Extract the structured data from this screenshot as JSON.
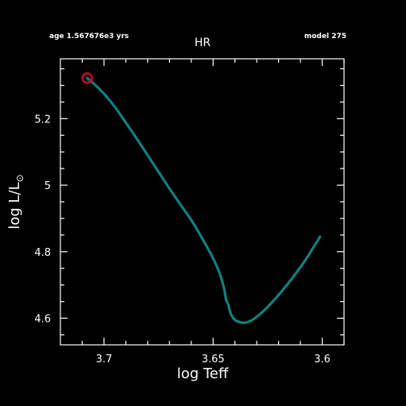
{
  "header": {
    "age_text": "age 1.567676e3 yrs",
    "model_text": "model 275"
  },
  "chart_data": {
    "type": "line",
    "title": "HR",
    "xlabel": "log Teff",
    "ylabel": "log L/L",
    "ylabel_symbol": "⊙",
    "xlim": [
      3.72,
      3.59
    ],
    "ylim": [
      4.52,
      5.38
    ],
    "x_ticks": [
      3.7,
      3.65,
      3.6
    ],
    "x_tick_labels": [
      "3.7",
      "3.65",
      "3.6"
    ],
    "y_ticks": [
      4.6,
      4.8,
      5.0,
      5.2
    ],
    "y_tick_labels": [
      "4.6",
      "4.8",
      "5",
      "5.2"
    ],
    "grid": false,
    "series": [
      {
        "color": "#138080",
        "x": [
          3.7077,
          3.705,
          3.7,
          3.695,
          3.69,
          3.685,
          3.68,
          3.675,
          3.67,
          3.665,
          3.66,
          3.655,
          3.65,
          3.647,
          3.645,
          3.644,
          3.643,
          3.642,
          3.64,
          3.637,
          3.635,
          3.632,
          3.628,
          3.622,
          3.615,
          3.608,
          3.601
        ],
        "y": [
          5.322,
          5.307,
          5.275,
          5.235,
          5.188,
          5.14,
          5.09,
          5.04,
          4.99,
          4.942,
          4.895,
          4.84,
          4.78,
          4.735,
          4.69,
          4.655,
          4.64,
          4.615,
          4.595,
          4.587,
          4.587,
          4.595,
          4.615,
          4.655,
          4.71,
          4.772,
          4.845
        ]
      }
    ],
    "marker": {
      "x": 3.7077,
      "y": 5.322,
      "color": "#cc0033"
    }
  }
}
